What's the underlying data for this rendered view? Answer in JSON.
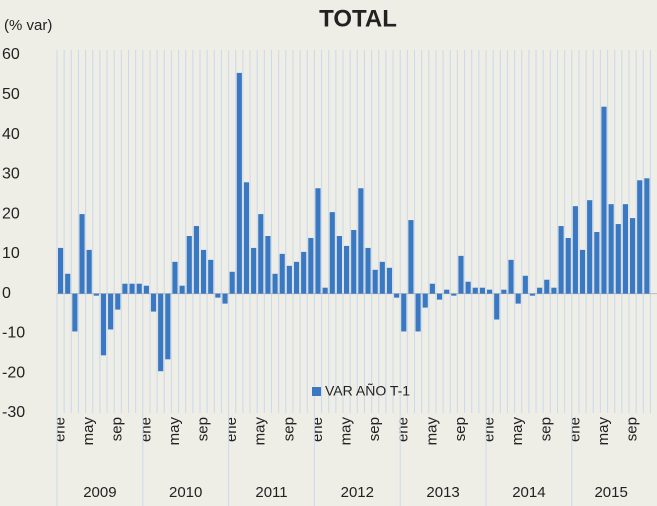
{
  "chart_data": {
    "type": "bar",
    "title": "TOTAL",
    "y_label": "(% var)",
    "categories": [
      "ene",
      null,
      null,
      null,
      "may",
      null,
      null,
      null,
      "sep",
      null,
      null,
      null,
      "ene",
      null,
      null,
      null,
      "may",
      null,
      null,
      null,
      "sep",
      null,
      null,
      null,
      "ene",
      null,
      null,
      null,
      "may",
      null,
      null,
      null,
      "sep",
      null,
      null,
      null,
      "ene",
      null,
      null,
      null,
      "may",
      null,
      null,
      null,
      "sep",
      null,
      null,
      null,
      "ene",
      null,
      null,
      null,
      "may",
      null,
      null,
      null,
      "sep",
      null,
      null,
      null,
      "ene",
      null,
      null,
      null,
      "may",
      null,
      null,
      null,
      "sep",
      null,
      null,
      null,
      "ene",
      null,
      null,
      null,
      "may",
      null,
      null,
      null,
      "sep",
      null,
      null
    ],
    "years": [
      "2009",
      "2010",
      "2011",
      "2012",
      "2013",
      "2014",
      "2015"
    ],
    "series": [
      {
        "name": "VAR AÑO T-1",
        "color": "#3a78c2",
        "values": [
          11.5,
          5,
          -9.5,
          20,
          11,
          -0.5,
          -15.5,
          -9,
          -4,
          2.5,
          2.5,
          2.5,
          2,
          -4.5,
          -19.5,
          -16.5,
          8,
          2,
          14.5,
          17,
          11,
          8.5,
          -1,
          -2.5,
          5.5,
          55.5,
          28,
          11.5,
          20,
          14.5,
          5,
          10,
          7,
          8,
          10.5,
          14,
          26.5,
          1.5,
          20.5,
          14.5,
          12,
          16,
          26.5,
          11.5,
          6,
          8,
          6.5,
          -1,
          -9.5,
          18.5,
          -9.5,
          -3.5,
          2.5,
          -1.5,
          1,
          -0.5,
          9.5,
          3,
          1.5,
          1.5,
          1,
          -6.5,
          1,
          8.5,
          -2.5,
          4.5,
          -0.5,
          1.5,
          3.5,
          1.5,
          17,
          14,
          22,
          11,
          23.5,
          15.5,
          47,
          22.5,
          17.5,
          22.5,
          19,
          28.5,
          29
        ]
      }
    ],
    "ylim": [
      -30,
      60
    ],
    "yticks": [
      -30,
      -20,
      -10,
      0,
      10,
      20,
      30,
      40,
      50,
      60
    ],
    "grid": true,
    "legend": "bottom"
  }
}
